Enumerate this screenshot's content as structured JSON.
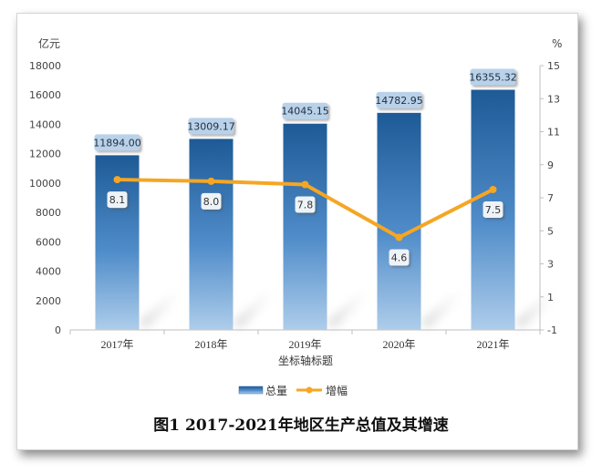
{
  "figure_caption": "图1  2017-2021年地区生产总值及其增速",
  "chart_data": {
    "type": "bar",
    "categories": [
      "2017年",
      "2018年",
      "2019年",
      "2020年",
      "2021年"
    ],
    "series": [
      {
        "name": "总量",
        "type": "bar",
        "axis": "left",
        "values": [
          11894.0,
          13009.17,
          14045.15,
          14782.95,
          16355.32
        ],
        "labels": [
          "11894.00",
          "13009.17",
          "14045.15",
          "14782.95",
          "16355.32"
        ],
        "color": "#2e6aa6"
      },
      {
        "name": "增幅",
        "type": "line",
        "axis": "right",
        "values": [
          8.1,
          8.0,
          7.8,
          4.6,
          7.5
        ],
        "labels": [
          "8.1",
          "8.0",
          "7.8",
          "4.6",
          "7.5"
        ],
        "color": "#f5a623"
      }
    ],
    "y_left": {
      "unit": "亿元",
      "ylim": [
        0,
        18000
      ],
      "ticks": [
        "0",
        "2000",
        "4000",
        "6000",
        "8000",
        "10000",
        "12000",
        "14000",
        "16000",
        "18000"
      ]
    },
    "y_right": {
      "unit": "%",
      "ylim": [
        -1,
        15
      ],
      "ticks": [
        "-1",
        "1",
        "3",
        "5",
        "7",
        "9",
        "11",
        "13",
        "15"
      ]
    },
    "xlabel": "坐标轴标题",
    "legend_position": "bottom",
    "grid": false
  }
}
